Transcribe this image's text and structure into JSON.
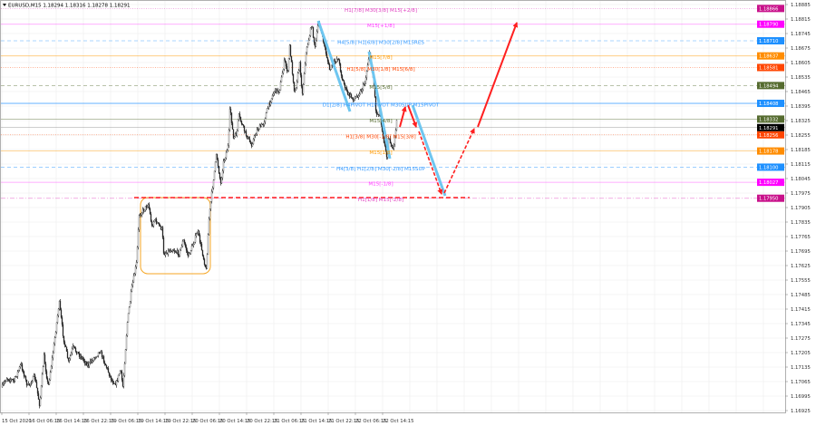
{
  "header": {
    "icon": "triangle-down-icon",
    "symbol_info": "EURUSD,M15  1.18294 1.18316 1.18278 1.18291"
  },
  "chart_data": {
    "type": "candlestick",
    "symbol": "EURUSD",
    "timeframe": "M15",
    "ohlc_current": {
      "open": 1.18294,
      "high": 1.18316,
      "low": 1.18278,
      "close": 1.18291
    },
    "ylim": [
      1.16925,
      1.18885
    ],
    "grid": true,
    "y_ticks": [
      "1.18885",
      "1.18815",
      "1.18745",
      "1.18675",
      "1.18605",
      "1.18535",
      "1.18465",
      "1.18395",
      "1.18325",
      "1.18255",
      "1.18185",
      "1.18115",
      "1.18045",
      "1.17975",
      "1.17905",
      "1.17835",
      "1.17765",
      "1.17695",
      "1.17625",
      "1.17555",
      "1.17485",
      "1.17415",
      "1.17345",
      "1.17275",
      "1.17205",
      "1.17135",
      "1.17065",
      "1.16995",
      "1.16925"
    ],
    "x_ticks": [
      "15 Oct 2020",
      "16 Oct 06:15",
      "16 Oct 14:15",
      "16 Oct 22:15",
      "19 Oct 06:15",
      "19 Oct 14:15",
      "19 Oct 22:15",
      "20 Oct 06:15",
      "20 Oct 14:15",
      "20 Oct 22:15",
      "21 Oct 06:15",
      "21 Oct 14:15",
      "21 Oct 22:15",
      "22 Oct 06:15",
      "22 Oct 14:15"
    ],
    "price_path": [
      [
        "2020-10-15 22:15",
        1.17039
      ],
      [
        "2020-10-15 23:30",
        1.17082
      ],
      [
        "2020-10-16 01:45",
        1.17069
      ],
      [
        "2020-10-16 03:45",
        1.17148
      ],
      [
        "2020-10-16 05:45",
        1.17039
      ],
      [
        "2020-10-16 07:45",
        1.17091
      ],
      [
        "2020-10-16 09:15",
        1.16951
      ],
      [
        "2020-10-16 10:30",
        1.17188
      ],
      [
        "2020-10-16 11:45",
        1.17039
      ],
      [
        "2020-10-16 13:15",
        1.17214
      ],
      [
        "2020-10-16 15:00",
        1.1745
      ],
      [
        "2020-10-16 16:15",
        1.17275
      ],
      [
        "2020-10-16 17:45",
        1.17157
      ],
      [
        "2020-10-16 19:00",
        1.17231
      ],
      [
        "2020-10-16 23:30",
        1.17144
      ],
      [
        "2020-10-19 03:00",
        1.17214
      ],
      [
        "2020-10-19 06:30",
        1.17069
      ],
      [
        "2020-10-19 07:45",
        1.17056
      ],
      [
        "2020-10-19 09:00",
        1.17122
      ],
      [
        "2020-10-19 09:45",
        1.17039
      ],
      [
        "2020-10-19 11:00",
        1.17345
      ],
      [
        "2020-10-19 12:15",
        1.17507
      ],
      [
        "2020-10-19 13:45",
        1.17638
      ],
      [
        "2020-10-19 14:30",
        1.1787
      ],
      [
        "2020-10-19 15:45",
        1.17892
      ],
      [
        "2020-10-19 17:15",
        1.17923
      ],
      [
        "2020-10-19 18:15",
        1.17813
      ],
      [
        "2020-10-19 19:00",
        1.17848
      ],
      [
        "2020-10-19 21:15",
        1.178
      ],
      [
        "2020-10-19 21:45",
        1.17682
      ],
      [
        "2020-10-20 00:15",
        1.17704
      ],
      [
        "2020-10-20 02:15",
        1.17682
      ],
      [
        "2020-10-20 03:30",
        1.17748
      ],
      [
        "2020-10-20 05:00",
        1.17669
      ],
      [
        "2020-10-20 07:45",
        1.17791
      ],
      [
        "2020-10-20 09:45",
        1.17638
      ],
      [
        "2020-10-20 10:15",
        1.17603
      ],
      [
        "2020-10-20 11:00",
        1.17844
      ],
      [
        "2020-10-20 11:45",
        1.17958
      ],
      [
        "2020-10-20 13:15",
        1.18163
      ],
      [
        "2020-10-20 14:30",
        1.18019
      ],
      [
        "2020-10-20 15:15",
        1.18119
      ],
      [
        "2020-10-20 16:45",
        1.18207
      ],
      [
        "2020-10-20 17:15",
        1.18395
      ],
      [
        "2020-10-20 18:15",
        1.18238
      ],
      [
        "2020-10-20 19:15",
        1.18264
      ],
      [
        "2020-10-20 19:45",
        1.18351
      ],
      [
        "2020-10-20 21:45",
        1.18264
      ],
      [
        "2020-10-20 23:30",
        1.18207
      ],
      [
        "2020-10-21 01:15",
        1.18281
      ],
      [
        "2020-10-21 03:00",
        1.18308
      ],
      [
        "2020-10-21 04:15",
        1.18382
      ],
      [
        "2020-10-21 06:15",
        1.18469
      ],
      [
        "2020-10-21 07:45",
        1.18469
      ],
      [
        "2020-10-21 09:15",
        1.18614
      ],
      [
        "2020-10-21 10:15",
        1.18557
      ],
      [
        "2020-10-21 10:45",
        1.18688
      ],
      [
        "2020-10-21 12:15",
        1.18456
      ],
      [
        "2020-10-21 13:45",
        1.18601
      ],
      [
        "2020-10-21 14:30",
        1.18448
      ],
      [
        "2020-10-21 15:30",
        1.18644
      ],
      [
        "2020-10-21 17:15",
        1.18789
      ],
      [
        "2020-10-21 18:15",
        1.18675
      ],
      [
        "2020-10-21 19:15",
        1.18806
      ],
      [
        "2020-10-21 21:00",
        1.18688
      ],
      [
        "2020-10-21 22:30",
        1.1857
      ],
      [
        "2020-10-22 01:00",
        1.18631
      ],
      [
        "2020-10-22 02:15",
        1.18526
      ],
      [
        "2020-10-22 03:45",
        1.18456
      ],
      [
        "2020-10-22 05:45",
        1.18426
      ],
      [
        "2020-10-22 07:45",
        1.18469
      ],
      [
        "2020-10-22 09:00",
        1.18513
      ],
      [
        "2020-10-22 10:15",
        1.18658
      ],
      [
        "2020-10-22 11:30",
        1.18513
      ],
      [
        "2020-10-22 12:15",
        1.18351
      ],
      [
        "2020-10-22 13:15",
        1.18369
      ],
      [
        "2020-10-22 14:15",
        1.18251
      ],
      [
        "2020-10-22 15:30",
        1.18133
      ],
      [
        "2020-10-22 15:45",
        1.18251
      ],
      [
        "2020-10-22 17:15",
        1.18176
      ],
      [
        "2020-10-22 18:15",
        1.18325
      ],
      [
        "2020-10-22 18:30",
        1.18291
      ]
    ],
    "levels": [
      {
        "price": 1.18866,
        "tag": "1.18866",
        "label": "H1[7/8] M30[3/8] M15[+2/8]",
        "color": "#e040c0",
        "tag_color": "#c8108a",
        "style": "dotted"
      },
      {
        "price": 1.1879,
        "tag": "1.18790",
        "label": "M15[+1/8]",
        "color": "#ff40ff",
        "tag_color": "#ff00ff",
        "style": "solid"
      },
      {
        "price": 1.1871,
        "tag": "1.18710",
        "label": "H4[5/8] H1[6/8] M30[2/8] M15RES",
        "color": "#3399ff",
        "tag_color": "#1e90ff",
        "style": "dashed"
      },
      {
        "price": 1.18637,
        "tag": "1.18637",
        "label": "M15[7/8]",
        "color": "#ff9900",
        "tag_color": "#ff8c00",
        "style": "solid"
      },
      {
        "price": 1.18581,
        "tag": "1.18581",
        "label": "H1[5/8] M30[1/8] M15[6/8]",
        "color": "#ff4500",
        "tag_color": "#ff4500",
        "style": "dotted"
      },
      {
        "price": 1.18494,
        "tag": "1.18494",
        "label": "M15[5/8]",
        "color": "#556b2f",
        "tag_color": "#556b2f",
        "style": "dashed"
      },
      {
        "price": 1.18408,
        "tag": "1.18408",
        "label": "D1[2/8] H4PIVOT H1PIVOT M30SUP M15PIVOT",
        "color": "#3399ff",
        "tag_color": "#1e90ff",
        "style": "solid"
      },
      {
        "price": 1.18332,
        "tag": "1.18332",
        "label": "M15[4/8]",
        "color": "#556b2f",
        "tag_color": "#556b2f",
        "style": "solid"
      },
      {
        "price": 1.18256,
        "tag": "1.18256",
        "label": "H1[3/8] M30[-1/8] M15[3/8]",
        "color": "#ff4500",
        "tag_color": "#ff4500",
        "style": "dotted"
      },
      {
        "price": 1.18178,
        "tag": "1.18178",
        "label": "M15[1/8]",
        "color": "#ff9900",
        "tag_color": "#ff8c00",
        "style": "solid"
      },
      {
        "price": 1.181,
        "tag": "1.18100",
        "label": "H4[3/8] H1[2/8] M30[-2/8] M15SUP",
        "color": "#3399ff",
        "tag_color": "#1e90ff",
        "style": "dashed"
      },
      {
        "price": 1.18027,
        "tag": "1.18027",
        "label": "M15[-1/8]",
        "color": "#ff40ff",
        "tag_color": "#ff00ff",
        "style": "solid"
      },
      {
        "price": 1.1795,
        "tag": "1.17950",
        "label": "H1[1/8] M15[-2/8]",
        "color": "#e040c0",
        "tag_color": "#c8108a",
        "style": "dashdot"
      }
    ],
    "current_price": {
      "price": 1.18291,
      "tag": "1.18291",
      "tag_color": "#000000"
    },
    "colors": {
      "trend_lines": "#6ec6f0",
      "forecast_arrows": "#ff2020",
      "range_box": "#f5a623",
      "grid": "#ececec"
    }
  }
}
